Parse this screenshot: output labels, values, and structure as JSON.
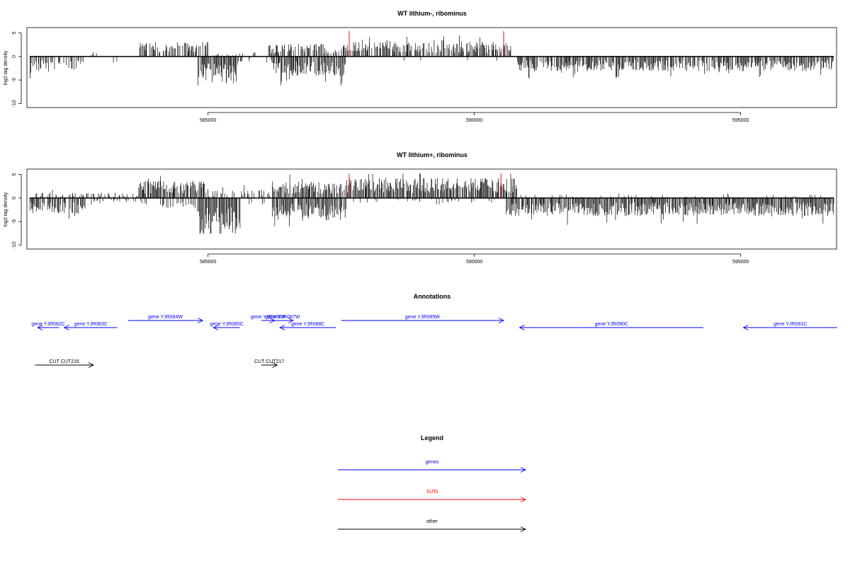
{
  "chart_data": [
    {
      "type": "bar",
      "title": "WT lithium-, ribominus",
      "xlabel": "",
      "ylabel": "log2 tag density",
      "xlim": [
        581600,
        596800
      ],
      "ylim": [
        -10,
        5
      ],
      "yticks": [
        5,
        0,
        -5,
        -10
      ],
      "xticks": [
        585000,
        590000,
        595000
      ],
      "grid": false,
      "profile": {
        "plus": [
          [
            582000,
            582800,
            0.3,
            0.05
          ],
          [
            582800,
            582900,
            0.9,
            0.5
          ],
          [
            583700,
            585000,
            2.6,
            0.65
          ],
          [
            585000,
            586100,
            0.8,
            0.2
          ],
          [
            586100,
            587200,
            2.3,
            0.7
          ],
          [
            587200,
            587500,
            1.2,
            0.3
          ],
          [
            587500,
            590700,
            2.6,
            0.75
          ]
        ],
        "minus": [
          [
            581650,
            582600,
            2.6,
            0.6
          ],
          [
            582600,
            583300,
            1.5,
            0.1
          ],
          [
            584800,
            585550,
            4.8,
            0.9
          ],
          [
            585550,
            586200,
            1.0,
            0.15
          ],
          [
            586200,
            587600,
            3.5,
            0.85
          ],
          [
            587600,
            590800,
            0.8,
            0.05
          ],
          [
            590800,
            596750,
            2.6,
            0.8
          ]
        ],
        "highlights": [
          {
            "x": 587650,
            "y": 5.4
          },
          {
            "x": 590550,
            "y": 5.4
          }
        ]
      }
    },
    {
      "type": "bar",
      "title": "WT lithium+, ribominus",
      "xlabel": "",
      "ylabel": "log2 tag density",
      "xlim": [
        581600,
        596800
      ],
      "ylim": [
        -10,
        5
      ],
      "yticks": [
        5,
        0,
        -5,
        -10
      ],
      "xticks": [
        585000,
        590000,
        595000
      ],
      "grid": false,
      "profile": {
        "plus": [
          [
            581700,
            583700,
            1.0,
            0.3
          ],
          [
            583700,
            585000,
            3.2,
            0.85
          ],
          [
            585000,
            586200,
            1.5,
            0.35
          ],
          [
            586200,
            587600,
            3.0,
            0.8
          ],
          [
            587600,
            590800,
            3.6,
            0.9
          ],
          [
            590800,
            596750,
            0.6,
            0.1
          ]
        ],
        "minus": [
          [
            581650,
            582700,
            2.8,
            0.7
          ],
          [
            582700,
            583700,
            1.2,
            0.2
          ],
          [
            583700,
            584800,
            1.8,
            0.3
          ],
          [
            584800,
            585600,
            6.5,
            0.95
          ],
          [
            585600,
            586200,
            1.2,
            0.2
          ],
          [
            586200,
            587600,
            4.0,
            0.85
          ],
          [
            587600,
            590600,
            0.9,
            0.1
          ],
          [
            590600,
            596750,
            3.2,
            0.9
          ]
        ],
        "highlights": [
          {
            "x": 587650,
            "y": 5.2
          },
          {
            "x": 590500,
            "y": 5.2
          }
        ]
      }
    }
  ],
  "annotations": {
    "title": "Annotations",
    "genes": [
      {
        "label": "gene YJR082C",
        "start": 581800,
        "end": 582200,
        "strand": "-",
        "row": 2
      },
      {
        "label": "gene YJR083C",
        "start": 582300,
        "end": 583300,
        "strand": "-",
        "row": 2
      },
      {
        "label": "gene YJR084W",
        "start": 583500,
        "end": 584900,
        "strand": "+",
        "row": 1
      },
      {
        "label": "gene YJR085C",
        "start": 585100,
        "end": 585600,
        "strand": "-",
        "row": 2
      },
      {
        "label": "gene YJR086W",
        "start": 586000,
        "end": 586250,
        "strand": "+",
        "row": 1
      },
      {
        "label": "gene YJR087W",
        "start": 586200,
        "end": 586600,
        "strand": "+",
        "row": 1
      },
      {
        "label": "gene YJR088C",
        "start": 586350,
        "end": 587400,
        "strand": "-",
        "row": 2
      },
      {
        "label": "gene YJR089W",
        "start": 587500,
        "end": 590550,
        "strand": "+",
        "row": 1
      },
      {
        "label": "gene YJR090C",
        "start": 590850,
        "end": 594300,
        "strand": "-",
        "row": 2
      },
      {
        "label": "gene YJR091C",
        "start": 595050,
        "end": 597200,
        "strand": "-",
        "row": 2
      }
    ],
    "others": [
      {
        "label": "CUT CUT216",
        "start": 581750,
        "end": 582850,
        "strand": "+"
      },
      {
        "label": "CUT CUT217",
        "start": 586000,
        "end": 586300,
        "strand": "+"
      }
    ]
  },
  "legend": {
    "title": "Legend",
    "items": [
      {
        "label": "genes",
        "color": "#0000ff"
      },
      {
        "label": "XUTs",
        "color": "#ff0000"
      },
      {
        "label": "other",
        "color": "#000000"
      }
    ]
  },
  "colors": {
    "axis": "#000000",
    "bars": "#000000",
    "highlight": "#ff0000",
    "genes": "#0000ff",
    "other": "#000000"
  }
}
